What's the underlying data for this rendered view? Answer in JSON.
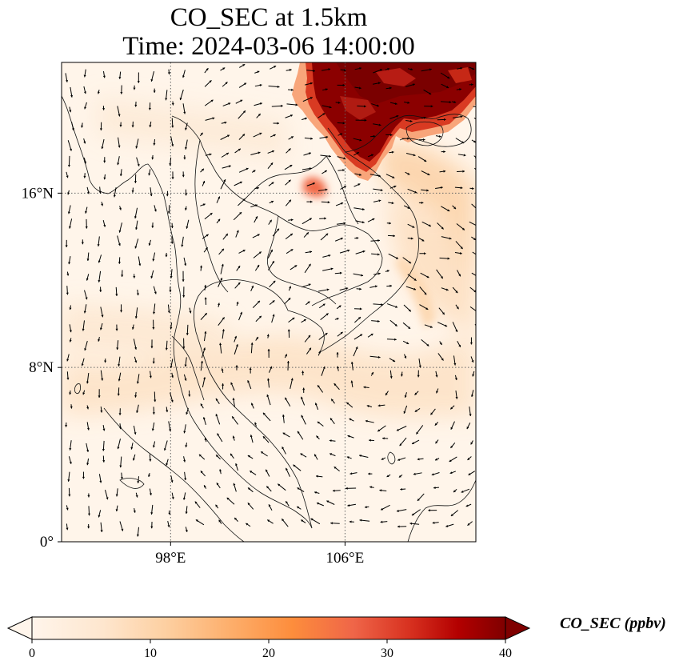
{
  "title": {
    "line1": "CO_SEC at 1.5km",
    "line2": "Time: 2024-03-06 14:00:00"
  },
  "map": {
    "lon_range": [
      93,
      112
    ],
    "lat_range": [
      0,
      22
    ],
    "x_ticks": [
      {
        "value": 98,
        "label": "98°E"
      },
      {
        "value": 106,
        "label": "106°E"
      }
    ],
    "y_ticks": [
      {
        "value": 0,
        "label": "0°"
      },
      {
        "value": 8,
        "label": "8°N"
      },
      {
        "value": 16,
        "label": "16°N"
      }
    ],
    "gridlines": true,
    "gridline_style": "dotted",
    "field": "CO_SEC",
    "field_colormap": "OrRd",
    "wind_vectors": true
  },
  "colorbar": {
    "label": "CO_SEC (ppbv)",
    "min": 0,
    "max": 40,
    "ticks": [
      {
        "value": 0,
        "label": "0"
      },
      {
        "value": 10,
        "label": "10"
      },
      {
        "value": 20,
        "label": "20"
      },
      {
        "value": 30,
        "label": "30"
      },
      {
        "value": 40,
        "label": "40"
      }
    ],
    "extend": "both",
    "colors": [
      "#fff5eb",
      "#fee6ce",
      "#fdd0a2",
      "#fdae6b",
      "#fd8d3c",
      "#f16913",
      "#d94801",
      "#a63603",
      "#7f0000"
    ]
  }
}
